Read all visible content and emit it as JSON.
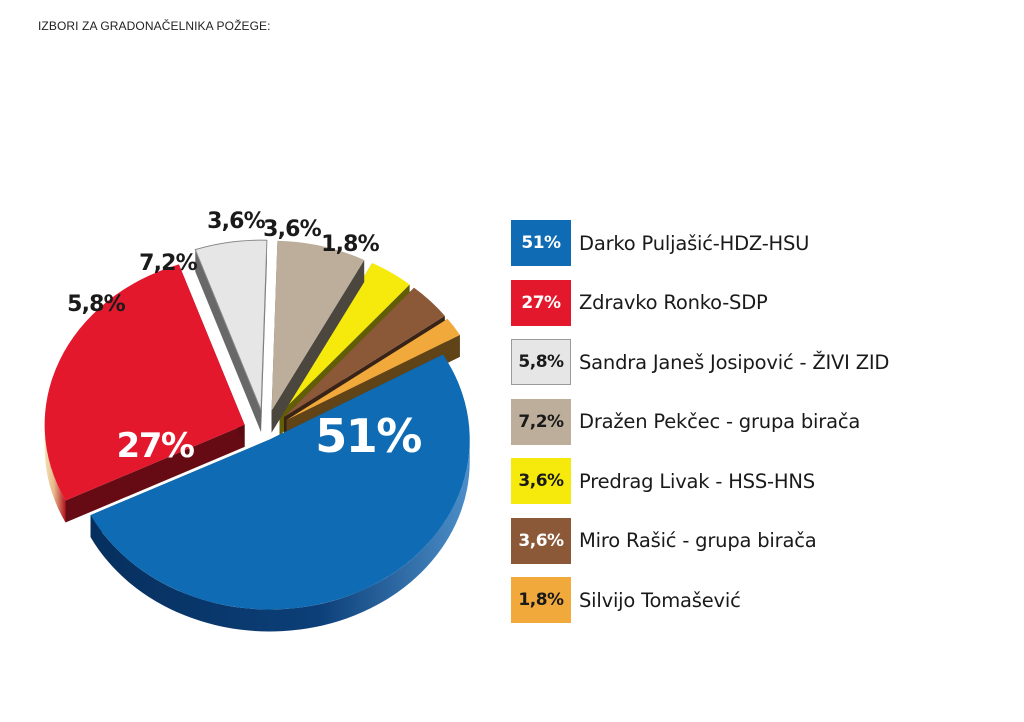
{
  "title": "IZBORI ZA GRADONAČELNIKA POŽEGE:",
  "chart_data": {
    "type": "pie",
    "title": "IZBORI ZA GRADONAČELNIKA POŽEGE:",
    "legend_position": "right",
    "three_d": true,
    "exploded": true,
    "series": [
      {
        "name": "Darko Puljašić-HDZ-HSU",
        "value": 51,
        "label": "51%",
        "color": "#0f6cb4",
        "text_color": "#ffffff"
      },
      {
        "name": "Zdravko Ronko-SDP",
        "value": 27,
        "label": "27%",
        "color": "#e3182d",
        "text_color": "#ffffff"
      },
      {
        "name": "Sandra Janeš Josipović - ŽIVI ZID",
        "value": 5.8,
        "label": "5,8%",
        "color": "#e6e6e6",
        "text_color": "#1a1a1a"
      },
      {
        "name": "Dražen Pekčec - grupa birača",
        "value": 7.2,
        "label": "7,2%",
        "color": "#bcae9b",
        "text_color": "#1a1a1a"
      },
      {
        "name": "Predrag Livak - HSS-HNS",
        "value": 3.6,
        "label": "3,6%",
        "color": "#f6ea0c",
        "text_color": "#1a1a1a"
      },
      {
        "name": "Miro Rašić - grupa birača",
        "value": 3.6,
        "label": "3,6%",
        "color": "#8b5838",
        "text_color": "#ffffff"
      },
      {
        "name": "Silvijo Tomašević",
        "value": 1.8,
        "label": "1,8%",
        "color": "#f1a93c",
        "text_color": "#1a1a1a"
      }
    ]
  }
}
